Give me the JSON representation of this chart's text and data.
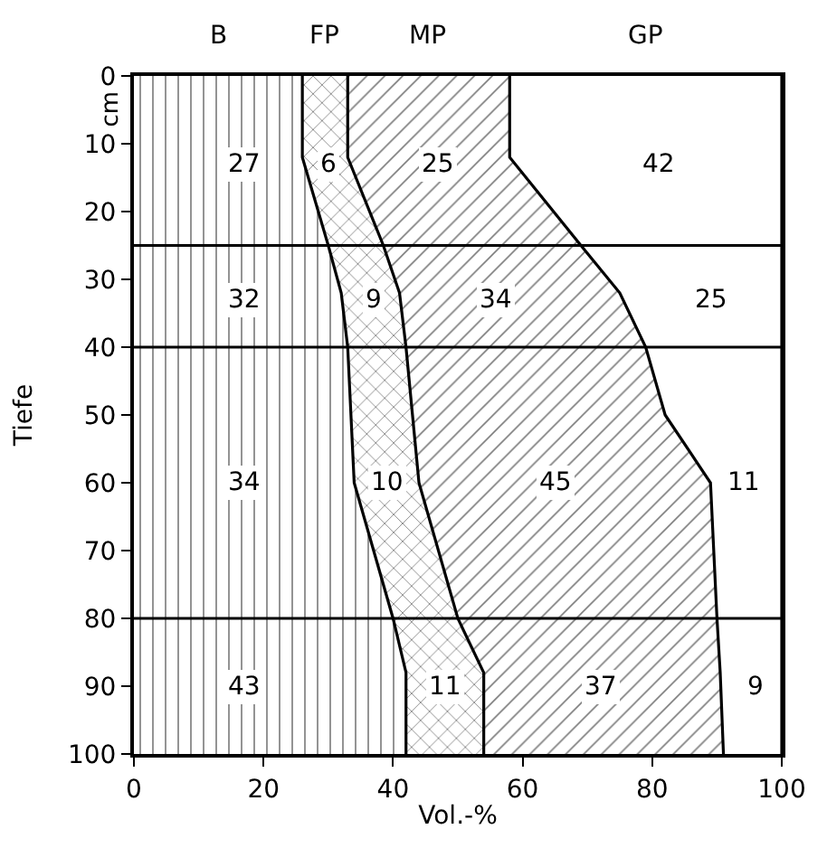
{
  "chart_data": {
    "type": "area",
    "orientation": "horizontal",
    "stacked": true,
    "xlabel": "Vol.-%",
    "ylabel": "Tiefe",
    "x": [
      0,
      12,
      25,
      32,
      40,
      50,
      60,
      80,
      88,
      100
    ],
    "series": [
      {
        "name": "B",
        "color": "#000000",
        "values": [
          26,
          26,
          30,
          32,
          33,
          33.5,
          34,
          40,
          42,
          42
        ]
      },
      {
        "name": "FP",
        "color": "#000000",
        "values": [
          7,
          7,
          8.5,
          9,
          9,
          9.5,
          10,
          10,
          12,
          12
        ]
      },
      {
        "name": "MP",
        "color": "#000000",
        "values": [
          25,
          25,
          30.5,
          34,
          37,
          39,
          45,
          40,
          36.5,
          37
        ]
      },
      {
        "name": "GP",
        "color": "#000000",
        "values": [
          42,
          42,
          31,
          25,
          21,
          18,
          11,
          10,
          9.5,
          9
        ]
      }
    ],
    "xlim": [
      0,
      100
    ],
    "xticks": [
      0,
      20,
      40,
      60,
      80,
      100
    ],
    "ylim": [
      100,
      0
    ],
    "yticks": [
      0,
      10,
      20,
      30,
      40,
      50,
      60,
      70,
      80,
      90,
      100
    ],
    "ref_lines": [
      {
        "axis": "y",
        "value": 25,
        "color": "#000000"
      },
      {
        "axis": "y",
        "value": 40,
        "color": "#000000"
      },
      {
        "axis": "y",
        "value": 80,
        "color": "#000000"
      }
    ],
    "legend": false,
    "annotations": [
      "cm",
      {
        "text": "27",
        "x": 17,
        "y": 13
      },
      {
        "text": "6",
        "x": 30,
        "y": 13
      },
      {
        "text": "25",
        "x": 47,
        "y": 13
      },
      {
        "text": "42",
        "x": 81,
        "y": 13
      },
      {
        "text": "32",
        "x": 17,
        "y": 33
      },
      {
        "text": "9",
        "x": 37,
        "y": 33
      },
      {
        "text": "34",
        "x": 56,
        "y": 33
      },
      {
        "text": "25",
        "x": 89,
        "y": 33
      },
      {
        "text": "34",
        "x": 17,
        "y": 60
      },
      {
        "text": "10",
        "x": 39,
        "y": 60
      },
      {
        "text": "45",
        "x": 65,
        "y": 60
      },
      {
        "text": "11",
        "x": 94,
        "y": 60
      },
      {
        "text": "43",
        "x": 17,
        "y": 90
      },
      {
        "text": "11",
        "x": 48,
        "y": 90
      },
      {
        "text": "37",
        "x": 72,
        "y": 90
      },
      {
        "text": "9",
        "x": 96,
        "y": 90
      }
    ]
  }
}
